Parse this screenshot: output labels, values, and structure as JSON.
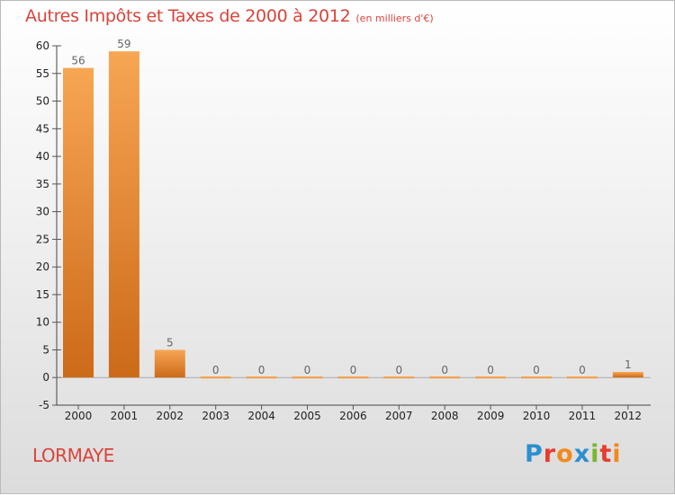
{
  "title": "Autres Impôts et Taxes de 2000 à 2012",
  "subtitle": "(en milliers d'€)",
  "commune": "LORMAYE",
  "logo": {
    "text": "Proxiti",
    "letters": [
      {
        "ch": "P",
        "color": "#2b8fd0"
      },
      {
        "ch": "r",
        "color": "#e63c2f"
      },
      {
        "ch": "o",
        "color": "#f08a1c"
      },
      {
        "ch": "x",
        "color": "#2b8fd0"
      },
      {
        "ch": "i",
        "color": "#76b82a"
      },
      {
        "ch": "t",
        "color": "#e63c2f"
      },
      {
        "ch": "i",
        "color": "#f08a1c"
      }
    ]
  },
  "colors": {
    "title": "#d9443a",
    "bar_light": "#f7a654",
    "bar_dark": "#cc6a18"
  },
  "chart_data": {
    "type": "bar",
    "categories": [
      "2000",
      "2001",
      "2002",
      "2003",
      "2004",
      "2005",
      "2006",
      "2007",
      "2008",
      "2009",
      "2010",
      "2011",
      "2012"
    ],
    "values": [
      56,
      59,
      5,
      0,
      0,
      0,
      0,
      0,
      0,
      0,
      0,
      0,
      1
    ],
    "data_labels": [
      "56",
      "59",
      "5",
      "0",
      "0",
      "0",
      "0",
      "0",
      "0",
      "0",
      "0",
      "0",
      "1"
    ],
    "ylim": [
      -5,
      60
    ],
    "yticks": [
      -5,
      0,
      5,
      10,
      15,
      20,
      25,
      30,
      35,
      40,
      45,
      50,
      55,
      60
    ],
    "xlabel": "",
    "ylabel": "",
    "grid": false
  }
}
